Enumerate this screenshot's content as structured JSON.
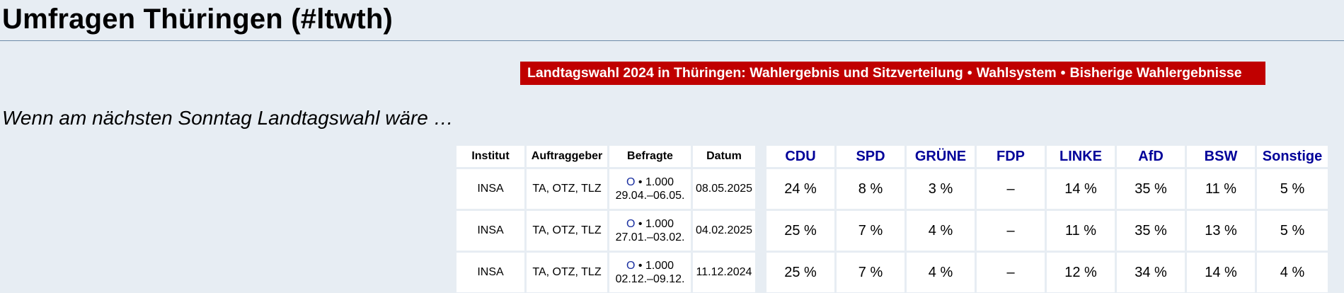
{
  "page_title": "Umfragen Thüringen (#ltwth)",
  "banner": {
    "items": [
      "Landtagswahl 2024 in Thüringen: Wahlergebnis und Sitzverteilung",
      "Wahlsystem",
      "Bisherige Wahlergebnisse"
    ],
    "separator": "•",
    "background": "#c00000"
  },
  "subtitle": "Wenn am nächsten Sonntag Landtagswahl wäre …",
  "table": {
    "headers": {
      "institut": "Institut",
      "auftraggeber": "Auftraggeber",
      "befragte": "Befragte",
      "datum": "Datum",
      "parties": [
        "CDU",
        "SPD",
        "GRÜNE",
        "FDP",
        "LINKE",
        "AfD",
        "BSW",
        "Sonstige"
      ]
    },
    "party_header_color": "#000099",
    "rows": [
      {
        "institut": "INSA",
        "auftraggeber": "TA, OTZ, TLZ",
        "method_icon": "O",
        "befragte_line1": "• 1.000",
        "befragte_line2": "29.04.–06.05.",
        "datum": "08.05.2025",
        "values": [
          "24 %",
          "8 %",
          "3 %",
          "–",
          "14 %",
          "35 %",
          "11 %",
          "5 %"
        ]
      },
      {
        "institut": "INSA",
        "auftraggeber": "TA, OTZ, TLZ",
        "method_icon": "O",
        "befragte_line1": "• 1.000",
        "befragte_line2": "27.01.–03.02.",
        "datum": "04.02.2025",
        "values": [
          "25 %",
          "7 %",
          "4 %",
          "–",
          "11 %",
          "35 %",
          "13 %",
          "5 %"
        ]
      },
      {
        "institut": "INSA",
        "auftraggeber": "TA, OTZ, TLZ",
        "method_icon": "O",
        "befragte_line1": "• 1.000",
        "befragte_line2": "02.12.–09.12.",
        "datum": "11.12.2024",
        "values": [
          "25 %",
          "7 %",
          "4 %",
          "–",
          "12 %",
          "34 %",
          "14 %",
          "4 %"
        ]
      }
    ]
  }
}
